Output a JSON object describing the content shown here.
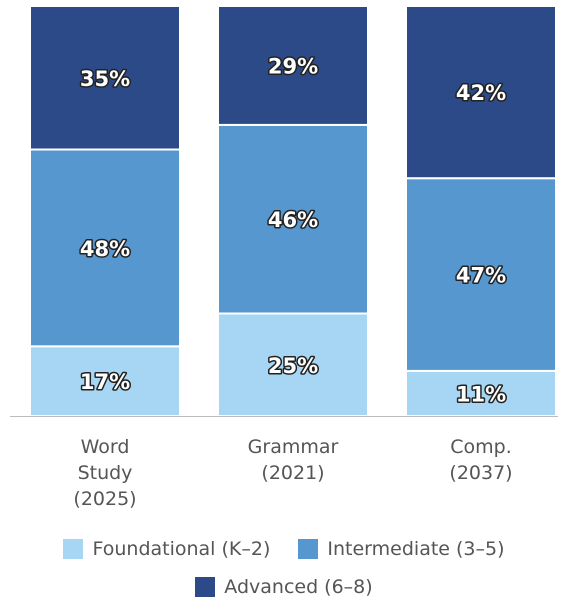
{
  "chart_data": {
    "type": "bar",
    "stacked": true,
    "percent": true,
    "categories": [
      [
        "Word",
        "Study",
        "(2025)"
      ],
      [
        "Grammar",
        "(2021)"
      ],
      [
        "Comp.",
        "(2037)"
      ]
    ],
    "series": [
      {
        "name": "Foundational (K–2)",
        "color": "#a6d6f3",
        "values": [
          17,
          25,
          11
        ],
        "labels": [
          "17%",
          "25%",
          "11%"
        ]
      },
      {
        "name": "Intermediate (3–5)",
        "color": "#5797cf",
        "values": [
          48,
          46,
          47
        ],
        "labels": [
          "48%",
          "46%",
          "47%"
        ]
      },
      {
        "name": "Advanced (6–8)",
        "color": "#2b4a87",
        "values": [
          35,
          29,
          42
        ],
        "labels": [
          "35%",
          "29%",
          "42%"
        ]
      }
    ],
    "ylim": [
      0,
      100
    ],
    "grid": false,
    "legend_position": "bottom"
  }
}
